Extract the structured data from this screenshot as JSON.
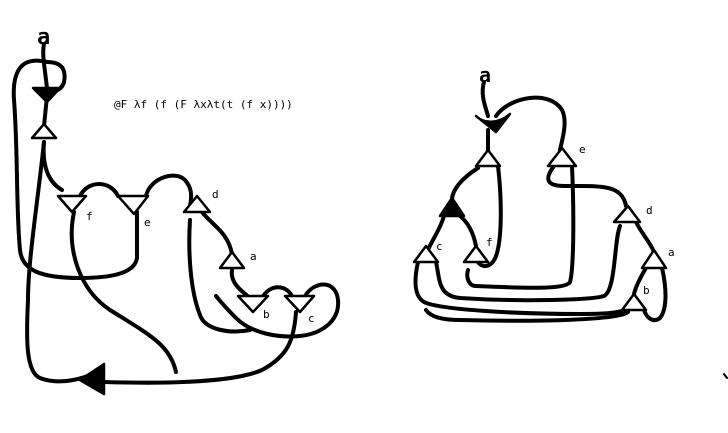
{
  "formula": "@F λf (f (F λxλt(t (f x))))",
  "left_graph": {
    "root_label": "a",
    "labels": {
      "f": "f",
      "e": "e",
      "d": "d",
      "a": "a",
      "b": "b",
      "c": "c"
    }
  },
  "right_graph": {
    "root_label": "a",
    "labels": {
      "e": "e",
      "d": "d",
      "c": "c",
      "f": "f",
      "a": "a",
      "b": "b"
    }
  }
}
